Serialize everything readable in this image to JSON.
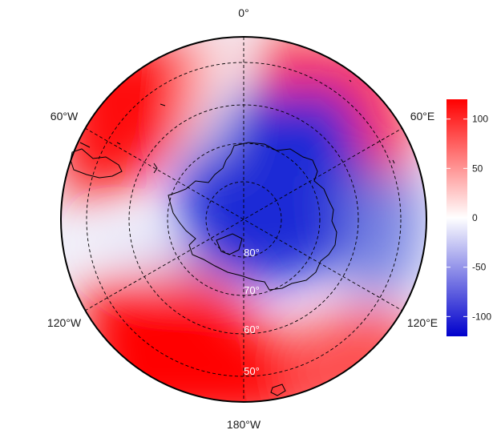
{
  "map": {
    "projection": "south-polar-stereographic",
    "longitude_labels": {
      "top": "0°",
      "upper_left": "60°W",
      "upper_right": "60°E",
      "lower_left": "120°W",
      "lower_right": "120°E",
      "bottom": "180°W"
    },
    "latitude_labels": [
      "80°",
      "70°",
      "60°",
      "50°"
    ],
    "colorbar": {
      "ticks": [
        "100",
        "50",
        "0",
        "-50",
        "-100"
      ],
      "range": [
        -120,
        120
      ],
      "colors": {
        "low": "#0000cc",
        "mid": "#ffffff",
        "high": "#ff0000"
      }
    },
    "colors": {
      "coastline": "#000000",
      "graticule": "#000000"
    }
  }
}
